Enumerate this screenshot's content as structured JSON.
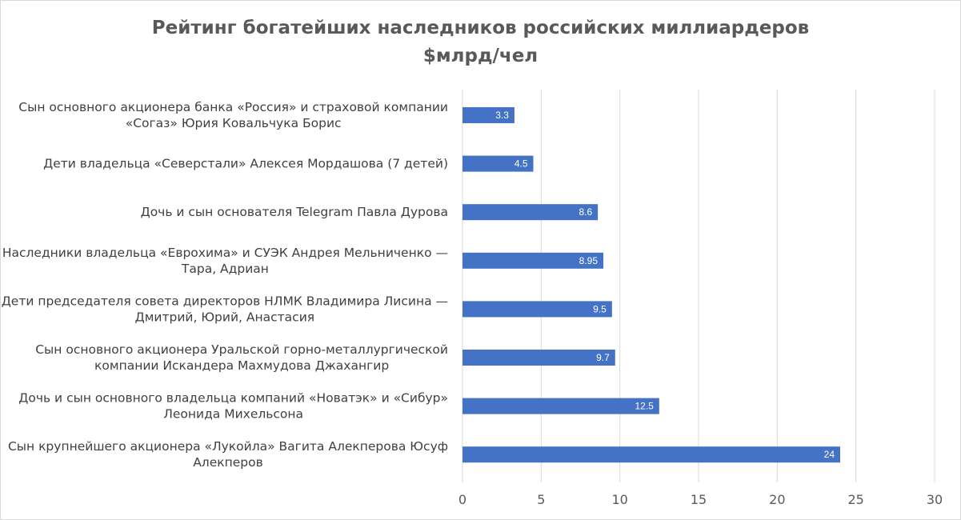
{
  "chart_data": {
    "type": "bar",
    "orientation": "horizontal",
    "title": "Рейтинг богатейших наследников российских миллиардеров",
    "subtitle": "$млрд/чел",
    "categories": [
      [
        "Сын основного акционера банка «Россия» и страховой компании",
        "«Согаз» Юрия Ковальчука Борис"
      ],
      [
        "Дети владельца «Северстали» Алексея Мордашова  (7 детей)"
      ],
      [
        "Дочь и сын основателя Telegram Павла Дурова "
      ],
      [
        "Наследники владельца «Еврохима» и СУЭК Андрея Мельниченко —",
        "Тара, Адриан"
      ],
      [
        "Дети председателя совета директоров НЛМК Владимира Лисина —",
        "Дмитрий, Юрий, Анастасия"
      ],
      [
        "Сын основного акционера Уральской горно-металлургической",
        "компании Искандера Махмудова Джахангир"
      ],
      [
        "Дочь и сын основного владельца компаний «Новатэк» и «Сибур»",
        "Леонида Михельсона"
      ],
      [
        "Сын крупнейшего акционера «Лукойла» Вагита Алекперова Юсуф",
        "Алекперов"
      ]
    ],
    "values": [
      3.3,
      4.5,
      8.6,
      8.95,
      9.5,
      9.7,
      12.5,
      24
    ],
    "data_labels": [
      "3.3",
      "4.5",
      "8.6",
      "8.95",
      "9.5",
      "9.7",
      "12.5",
      "24"
    ],
    "xlim": [
      0,
      30
    ],
    "x_ticks": [
      "0",
      "5",
      "10",
      "15",
      "20",
      "25",
      "30"
    ],
    "grid": true,
    "legend": "none",
    "bar_color": "#4472c4",
    "grid_color": "#d9d9d9"
  }
}
